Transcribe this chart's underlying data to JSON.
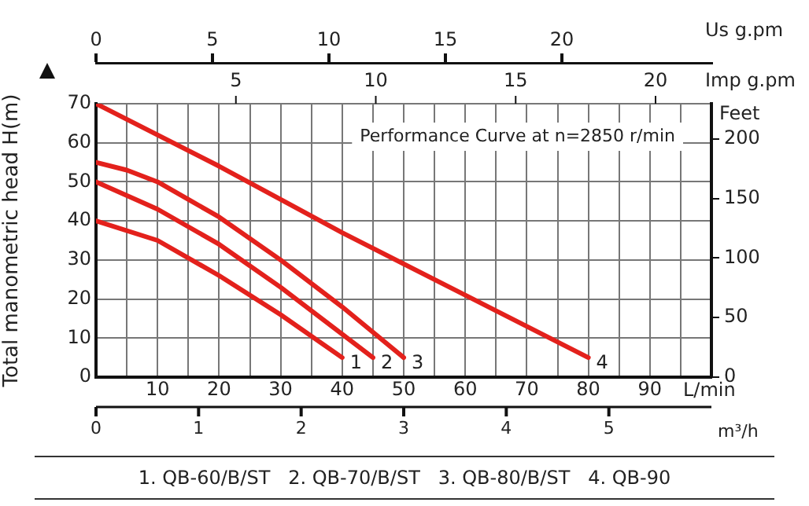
{
  "chart_data": {
    "type": "line",
    "ylabel": "Total manometric head H(m)",
    "xlabel": "L/min",
    "x2label": "Us g.pm",
    "y2label": "Feet",
    "xlim": [
      0,
      100
    ],
    "xticks": [
      {
        "value": 0,
        "label": null
      },
      {
        "value": 5,
        "label": null
      },
      10,
      {
        "value": 15,
        "label": null
      },
      20,
      {
        "value": 25,
        "label": null
      },
      30,
      {
        "value": 35,
        "label": null
      },
      40,
      {
        "value": 45,
        "label": null
      },
      50,
      {
        "value": 55,
        "label": null
      },
      60,
      {
        "value": 65,
        "label": null
      },
      70,
      {
        "value": 75,
        "label": null
      },
      80,
      {
        "value": 85,
        "label": null
      },
      90,
      {
        "value": 95,
        "label": null
      },
      {
        "value": 100,
        "label": null
      }
    ],
    "x2lim": [
      0,
      26.42
    ],
    "x2ticks": [
      0,
      5,
      10,
      15,
      20
    ],
    "ylim": [
      0,
      70
    ],
    "yticks": [
      0,
      10,
      20,
      30,
      40,
      50,
      60,
      70
    ],
    "y2lim": [
      0,
      229.66
    ],
    "y2ticks": [
      0,
      50,
      100,
      150,
      200
    ],
    "grid": true,
    "legend": false,
    "marker": "none",
    "line_style": "solid",
    "series": [
      {
        "name": "1",
        "color": "#e3211c",
        "x": [
          0,
          10,
          20,
          30,
          40
        ],
        "values": [
          40,
          35,
          26,
          16,
          5
        ]
      },
      {
        "name": "2",
        "color": "#e3211c",
        "x": [
          0,
          10,
          20,
          30,
          45
        ],
        "values": [
          50,
          43,
          34,
          23,
          5
        ]
      },
      {
        "name": "3",
        "color": "#e3211c",
        "x": [
          0,
          5,
          10,
          20,
          30,
          40,
          50
        ],
        "values": [
          55,
          53,
          50,
          41,
          30,
          18,
          5
        ]
      },
      {
        "name": "4",
        "color": "#e3211c",
        "x": [
          0,
          20,
          40,
          60,
          80
        ],
        "values": [
          70,
          54,
          37,
          21,
          5
        ]
      }
    ],
    "annotations": [
      "Performance Curve at n=2850 r/min",
      "1. QB-60/B/ST   2. QB-70/B/ST   3. QB-80/B/ST   4. QB-90",
      "Imp g.pm",
      "5",
      "10",
      "15",
      "20",
      "m³/h",
      "0",
      "1",
      "2",
      "3",
      "4",
      "5"
    ]
  }
}
